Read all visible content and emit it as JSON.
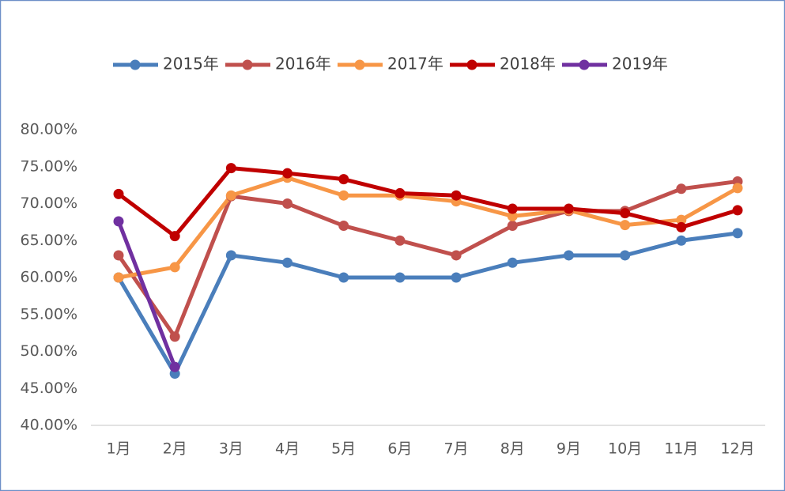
{
  "chart_data": {
    "type": "line",
    "categories": [
      "1月",
      "2月",
      "3月",
      "4月",
      "5月",
      "6月",
      "7月",
      "8月",
      "9月",
      "10月",
      "11月",
      "12月"
    ],
    "series": [
      {
        "name": "2015年",
        "color": "#4a7ebb",
        "values": [
          60,
          47,
          63,
          62,
          60,
          60,
          60,
          62,
          63,
          63,
          65,
          66
        ]
      },
      {
        "name": "2016年",
        "color": "#c0504d",
        "values": [
          63,
          52,
          71,
          70,
          67,
          65,
          63,
          67,
          69,
          69,
          72,
          73
        ]
      },
      {
        "name": "2017年",
        "color": "#f79646",
        "values": [
          60,
          61.4,
          71.1,
          73.5,
          71.1,
          71.1,
          70.3,
          68.3,
          69.1,
          67.1,
          67.8,
          72.1
        ]
      },
      {
        "name": "2018年",
        "color": "#c00000",
        "values": [
          71.3,
          65.6,
          74.8,
          74.1,
          73.3,
          71.4,
          71.1,
          69.3,
          69.3,
          68.7,
          66.8,
          69.1
        ]
      },
      {
        "name": "2019年",
        "color": "#7030a0",
        "values": [
          67.6,
          47.9,
          null,
          null,
          null,
          null,
          null,
          null,
          null,
          null,
          null,
          null
        ]
      }
    ],
    "ylim": [
      40,
      80
    ],
    "yticks": [
      {
        "value": 40,
        "label": "40.00%"
      },
      {
        "value": 45,
        "label": "45.00%"
      },
      {
        "value": 50,
        "label": "50.00%"
      },
      {
        "value": 55,
        "label": "55.00%"
      },
      {
        "value": 60,
        "label": "60.00%"
      },
      {
        "value": 65,
        "label": "65.00%"
      },
      {
        "value": 70,
        "label": "70.00%"
      },
      {
        "value": 75,
        "label": "75.00%"
      },
      {
        "value": 80,
        "label": "80.00%"
      }
    ],
    "grid": false,
    "legend": "top"
  }
}
